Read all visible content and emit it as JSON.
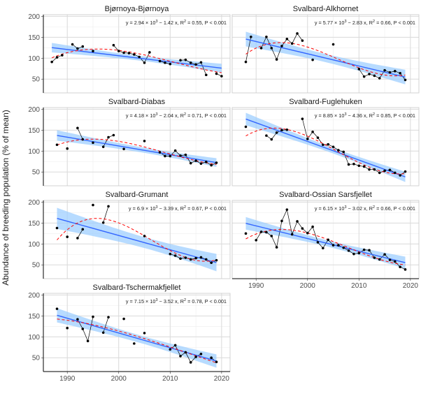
{
  "y_axis_title": "Abundance of breeding population (% of mean)",
  "colors": {
    "points": "#000000",
    "linear_fit": "#3366FF",
    "confidence_band": "#99CCFF",
    "smooth_fit": "#FF0000",
    "grid": "#D9D9D9"
  },
  "chart_data": [
    {
      "type": "scatter",
      "title": "Bjørnoya-Bjørnoya",
      "equation": [
        "y = 2.94 × 10",
        "3",
        " − 1.42 x, R",
        "2",
        " = 0.55, P < 0.001"
      ],
      "x": [
        1987,
        1988,
        1989,
        1991,
        1992,
        1993,
        1995,
        1999,
        2000,
        2001,
        2002,
        2003,
        2004,
        2005,
        2006,
        2008,
        2009,
        2010,
        2012,
        2013,
        2014,
        2015,
        2016,
        2017,
        2019,
        2020
      ],
      "y": [
        91,
        102,
        107,
        133,
        123,
        128,
        117,
        131,
        117,
        113,
        112,
        109,
        103,
        89,
        114,
        93,
        89,
        86,
        95,
        96,
        89,
        85,
        90,
        60,
        63,
        57
      ]
    },
    {
      "type": "scatter",
      "title": "Svalbard-Alkhornet",
      "equation": [
        "y = 5.77 × 10",
        "3",
        " − 2.83 x, R",
        "2",
        " = 0.66, P < 0.001"
      ],
      "x": [
        1988,
        1989,
        1991,
        1992,
        1993,
        1994,
        1995,
        1996,
        1997,
        1998,
        1999,
        2001,
        2005,
        2010,
        2011,
        2012,
        2013,
        2014,
        2015,
        2016,
        2017,
        2018,
        2019
      ],
      "y": [
        91,
        151,
        124,
        151,
        124,
        97,
        129,
        146,
        135,
        159,
        142,
        96,
        133,
        74,
        56,
        62,
        58,
        52,
        71,
        66,
        69,
        64,
        48
      ]
    },
    {
      "type": "scatter",
      "title": "Svalbard-Diabas",
      "equation": [
        "y = 4.18 × 10",
        "3",
        " − 2.04 x, R",
        "2",
        " = 0.71, P < 0.001"
      ],
      "x": [
        1988,
        1990,
        1992,
        1993,
        1995,
        1997,
        1998,
        1999,
        2001,
        2005,
        2008,
        2009,
        2010,
        2011,
        2012,
        2013,
        2014,
        2015,
        2016,
        2017,
        2018,
        2019
      ],
      "y": [
        115,
        106,
        155,
        128,
        120,
        110,
        133,
        138,
        105,
        124,
        97,
        88,
        88,
        101,
        89,
        91,
        71,
        77,
        70,
        74,
        66,
        72
      ]
    },
    {
      "type": "scatter",
      "title": "Svalbard-Fuglehuken",
      "equation": [
        "y = 8.85 × 10",
        "3",
        " − 4.36 x, R",
        "2",
        " = 0.85, P < 0.001"
      ],
      "x": [
        1988,
        1992,
        1993,
        1994,
        1995,
        1996,
        1999,
        2000,
        2001,
        2002,
        2003,
        2004,
        2005,
        2006,
        2007,
        2008,
        2009,
        2010,
        2011,
        2012,
        2013,
        2014,
        2015,
        2016,
        2017,
        2018,
        2019
      ],
      "y": [
        158,
        137,
        128,
        144,
        150,
        151,
        177,
        129,
        146,
        132,
        115,
        116,
        110,
        102,
        98,
        68,
        69,
        65,
        63,
        56,
        56,
        48,
        53,
        55,
        48,
        42,
        51
      ]
    },
    {
      "type": "scatter",
      "title": "Svalbard-Grumant",
      "equation": [
        "y = 6.9 × 10",
        "3",
        " − 3.39 x, R",
        "2",
        " = 0.67, P < 0.001"
      ],
      "x": [
        1988,
        1990,
        1992,
        1993,
        1995,
        1997,
        1998,
        2005,
        2010,
        2011,
        2012,
        2013,
        2014,
        2015,
        2016,
        2017,
        2018,
        2019
      ],
      "y": [
        138,
        117,
        114,
        135,
        193,
        151,
        190,
        119,
        76,
        72,
        65,
        67,
        63,
        66,
        68,
        63,
        55,
        61
      ]
    },
    {
      "type": "scatter",
      "title": "Svalbard-Ossian Sarsfjellet",
      "equation": [
        "y = 6.15 × 10",
        "3",
        " − 3.02 x, R",
        "2",
        " = 0.66, P < 0.001"
      ],
      "x": [
        1988,
        1990,
        1991,
        1992,
        1993,
        1994,
        1995,
        1996,
        1997,
        1998,
        1999,
        2000,
        2001,
        2002,
        2003,
        2004,
        2005,
        2006,
        2007,
        2008,
        2009,
        2010,
        2011,
        2012,
        2013,
        2014,
        2015,
        2016,
        2017,
        2018,
        2019
      ],
      "y": [
        125,
        109,
        129,
        128,
        119,
        92,
        155,
        182,
        123,
        154,
        137,
        126,
        141,
        104,
        90,
        110,
        97,
        97,
        91,
        84,
        76,
        78,
        86,
        85,
        67,
        63,
        75,
        62,
        58,
        45,
        39
      ]
    },
    {
      "type": "scatter",
      "title": "Svalbard-Tschermakfjellet",
      "equation": [
        "y = 7.15 × 10",
        "3",
        " − 3.52 x, R",
        "2",
        " = 0.78, P < 0.001"
      ],
      "x": [
        1988,
        1990,
        1992,
        1993,
        1994,
        1995,
        1997,
        1998,
        2001,
        2003,
        2005,
        2010,
        2011,
        2012,
        2013,
        2014,
        2015,
        2016,
        2018,
        2019
      ],
      "y": [
        167,
        121,
        142,
        119,
        90,
        148,
        110,
        147,
        143,
        84,
        109,
        70,
        80,
        54,
        63,
        39,
        52,
        59,
        50,
        40
      ]
    }
  ],
  "axes": {
    "x_ticks": [
      "1990",
      "2000",
      "2010",
      "2020"
    ],
    "y_ticks": [
      "50",
      "100",
      "150",
      "200"
    ],
    "xlim": [
      1985.35,
      2021.65
    ],
    "ylim": [
      17,
      204
    ],
    "grid": true
  }
}
